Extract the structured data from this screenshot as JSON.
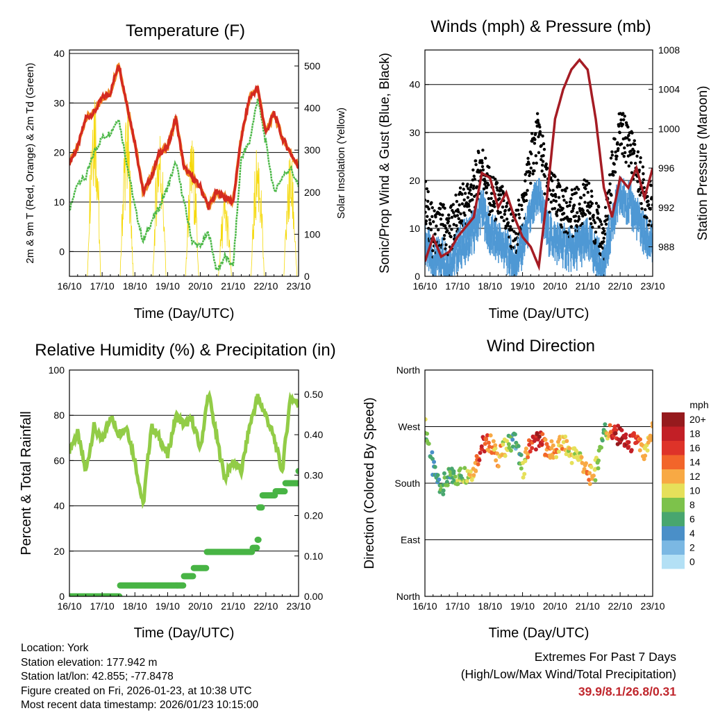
{
  "footer": {
    "location": "Location: York",
    "elevation": "Station elevation: 177.942 m",
    "latlon": "Station lat/lon: 42.855; -77.8478",
    "created": "Figure created on Fri, 2026-01-23, at 10:38 UTC",
    "recent": "Most recent data timestamp: 2026/01/23 10:15:00"
  },
  "extremes": {
    "title": "Extremes For Past 7 Days",
    "subtitle": "(High/Low/Max Wind/Total Precipitation)",
    "values": "39.9/8.1/26.8/0.31",
    "color": "#c0272d"
  },
  "chart_data": [
    {
      "type": "line",
      "title": "Temperature (F)",
      "xlabel": "Time (Day/UTC)",
      "ylabel": "2m & 9m T (Red, Orange) & 2m Td (Green)",
      "y2label": "Solar Insolation (Yellow)",
      "xticks": [
        "16/10",
        "17/10",
        "18/10",
        "19/10",
        "20/10",
        "21/10",
        "22/10",
        "23/10"
      ],
      "xlim": [
        0,
        7
      ],
      "ylim": [
        -5,
        40.7
      ],
      "yticks": [
        "40",
        "30",
        "20",
        "10",
        "0"
      ],
      "ytick_values": [
        40,
        30,
        20,
        10,
        0
      ],
      "y2lim": [
        0,
        538
      ],
      "y2ticks": [
        "500",
        "400",
        "300",
        "200",
        "100",
        "0"
      ],
      "y2tick_values": [
        500,
        400,
        300,
        200,
        100,
        0
      ],
      "x_step_days": 0.25,
      "series": [
        {
          "name": "2m T",
          "color": "#d42a20",
          "values": [
            18,
            21,
            27,
            28,
            31,
            32,
            38,
            30,
            22,
            12,
            15,
            20,
            21,
            27,
            17,
            15,
            13,
            9,
            12,
            11,
            10,
            23,
            31,
            33,
            24,
            28,
            23,
            20,
            17
          ]
        },
        {
          "name": "9m T",
          "color": "#f08a24",
          "values": [
            18,
            21,
            27,
            28,
            31,
            32,
            38,
            30,
            22,
            12,
            15,
            20,
            21,
            27,
            17,
            15,
            13,
            9,
            12,
            11,
            10,
            23,
            31,
            33,
            24,
            28,
            23,
            20,
            17
          ]
        },
        {
          "name": "2m Td",
          "color": "#4cb848",
          "values": [
            8,
            14,
            15,
            20,
            23,
            24,
            27,
            18,
            9,
            2,
            6,
            9,
            13,
            18,
            10,
            2,
            1,
            4,
            -4,
            -1,
            -3,
            19,
            22,
            31,
            22,
            12,
            15,
            17,
            13
          ]
        },
        {
          "name": "Solar Insolation daily peak",
          "color": "#f5d90a",
          "daily_peaks": [
            520,
            410,
            380,
            340,
            200,
            330,
            300
          ]
        }
      ]
    },
    {
      "type": "line",
      "title": "Winds (mph) & Pressure (mb)",
      "xlabel": "Time (Day/UTC)",
      "ylabel": "Sonic/Prop Wind & Gust (Blue, Black)",
      "y2label": "Station Pressure (Maroon)",
      "xticks": [
        "16/10",
        "17/10",
        "18/10",
        "19/10",
        "20/10",
        "21/10",
        "22/10",
        "23/10"
      ],
      "xlim": [
        0,
        7
      ],
      "ylim": [
        0,
        47.2
      ],
      "yticks": [
        "40",
        "30",
        "20",
        "10",
        "0"
      ],
      "ytick_values": [
        40,
        30,
        20,
        10,
        0
      ],
      "y2lim": [
        985,
        1008
      ],
      "y2ticks": [
        "1008",
        "1004",
        "1000",
        "996",
        "992",
        "988"
      ],
      "y2tick_values": [
        1008,
        1004,
        1000,
        996,
        992,
        988
      ],
      "x_step_days": 0.25,
      "series": [
        {
          "name": "Wind",
          "color": "#4f98d4",
          "values": [
            10,
            5,
            7,
            5,
            8,
            10,
            12,
            17,
            11,
            10,
            8,
            5,
            9,
            15,
            20,
            12,
            10,
            9,
            8,
            9,
            10,
            7,
            4,
            14,
            19,
            18,
            15,
            11,
            9
          ]
        },
        {
          "name": "Gust",
          "color": "#000000",
          "values": [
            16,
            9,
            11,
            9,
            13,
            15,
            18,
            24,
            17,
            15,
            13,
            8,
            14,
            24,
            30,
            19,
            16,
            14,
            13,
            14,
            16,
            11,
            7,
            22,
            30,
            28,
            23,
            17,
            14
          ]
        },
        {
          "name": "Station Pressure",
          "color": "#a51c24",
          "values": [
            986.5,
            989,
            987,
            987.5,
            989,
            990,
            991,
            995.5,
            995,
            992,
            993.5,
            991,
            989,
            988,
            986,
            993,
            1001,
            1004,
            1006,
            1007,
            1006,
            1001,
            994,
            991,
            995,
            994,
            996,
            993,
            996
          ]
        }
      ]
    },
    {
      "type": "line",
      "title": "Relative Humidity (%) & Precipitation (in)",
      "xlabel": "Time (Day/UTC)",
      "ylabel": "Percent & Total Rainfall",
      "xticks": [
        "16/10",
        "17/10",
        "18/10",
        "19/10",
        "20/10",
        "21/10",
        "22/10",
        "23/10"
      ],
      "xlim": [
        0,
        7
      ],
      "ylim": [
        0,
        100
      ],
      "yticks": [
        "100",
        "80",
        "60",
        "40",
        "20",
        "0"
      ],
      "ytick_values": [
        100,
        80,
        60,
        40,
        20,
        0
      ],
      "y2lim": [
        0,
        0.56
      ],
      "y2ticks": [
        "0.50",
        "0.40",
        "0.30",
        "0.20",
        "0.10",
        "0.00"
      ],
      "y2tick_values": [
        0.5,
        0.4,
        0.3,
        0.2,
        0.1,
        0
      ],
      "x_step_days": 0.25,
      "series": [
        {
          "name": "Relative Humidity",
          "color": "#92cc47",
          "values": [
            65,
            72,
            55,
            75,
            68,
            80,
            72,
            75,
            60,
            40,
            75,
            70,
            62,
            80,
            76,
            78,
            65,
            90,
            70,
            52,
            60,
            55,
            75,
            88,
            80,
            70,
            55,
            88,
            85
          ]
        },
        {
          "name": "Total Precipitation",
          "color": "#48b445",
          "t": [
            0,
            1.5,
            1.55,
            3.4,
            3.5,
            3.8,
            4.2,
            5.6,
            5.75,
            5.8,
            5.9,
            6.3,
            6.6,
            7
          ],
          "values": [
            0,
            0,
            0.027,
            0.027,
            0.05,
            0.07,
            0.11,
            0.12,
            0.14,
            0.22,
            0.25,
            0.26,
            0.28,
            0.31
          ]
        }
      ]
    },
    {
      "type": "scatter",
      "title": "Wind Direction",
      "xlabel": "Time (Day/UTC)",
      "ylabel": "Direction (Colored By Speed)",
      "xticks": [
        "16/10",
        "17/10",
        "18/10",
        "19/10",
        "20/10",
        "21/10",
        "22/10",
        "23/10"
      ],
      "xlim": [
        0,
        7
      ],
      "ylim": [
        0,
        360
      ],
      "yticks": [
        "North",
        "East",
        "South",
        "West",
        "North"
      ],
      "ytick_values": [
        0,
        90,
        180,
        270,
        360
      ],
      "x_step_days": 0.25,
      "direction": [
        275,
        200,
        175,
        190,
        190,
        195,
        200,
        240,
        245,
        220,
        240,
        250,
        200,
        245,
        250,
        235,
        230,
        245,
        225,
        225,
        190,
        200,
        265,
        260,
        255,
        240,
        250,
        220,
        270
      ],
      "speed": [
        9,
        4,
        7,
        6,
        8,
        9,
        12,
        17,
        13,
        12,
        10,
        4,
        8,
        16,
        18,
        13,
        12,
        11,
        10,
        10,
        13,
        10,
        6,
        16,
        19,
        17,
        15,
        10,
        12
      ],
      "legend": {
        "title": "mph",
        "labels": [
          "20+",
          "18",
          "16",
          "14",
          "12",
          "10",
          "8",
          "6",
          "4",
          "2",
          "0"
        ],
        "colors": [
          "#961a1d",
          "#c21f26",
          "#de3329",
          "#f2652a",
          "#f8a944",
          "#e6e05a",
          "#7dc24b",
          "#48a66f",
          "#4a8fc8",
          "#7bb8e3",
          "#b3e0f5"
        ],
        "placement": "right"
      }
    }
  ]
}
